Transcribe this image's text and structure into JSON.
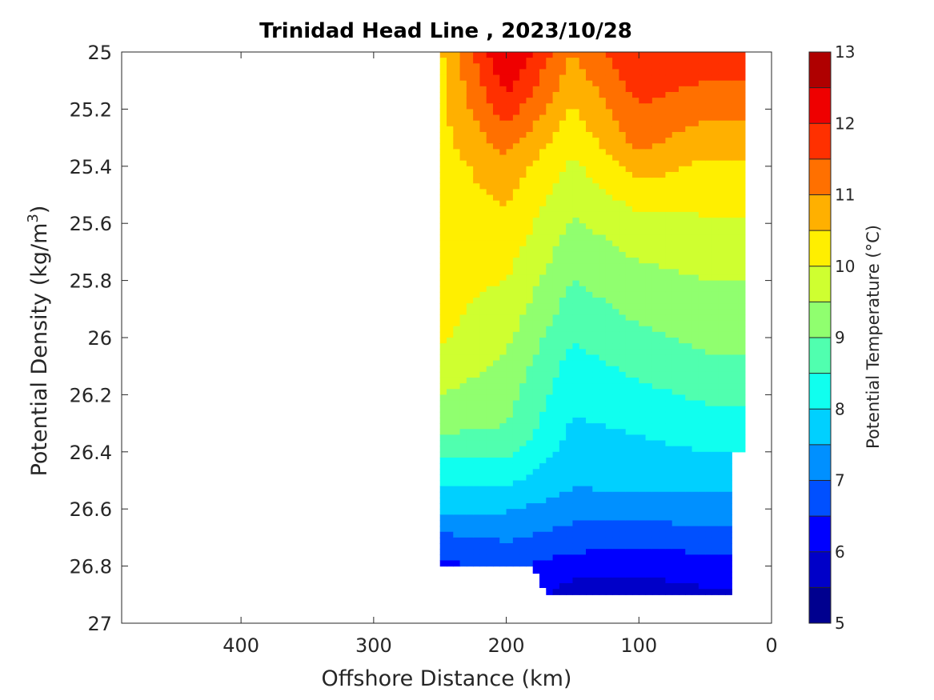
{
  "chart_data": {
    "type": "contour",
    "title": "Trinidad Head Line , 2023/10/28",
    "xlabel": "Offshore Distance (km)",
    "ylabel_main": "Potential Density (kg/m",
    "ylabel_sup": "3",
    "ylabel_close": ")",
    "xlim": [
      490,
      0
    ],
    "x_reversed": true,
    "x_ticks": [
      400,
      300,
      200,
      100,
      0
    ],
    "ylim": [
      25,
      27
    ],
    "y_reversed": true,
    "y_ticks": [
      "25",
      "25.2",
      "25.4",
      "25.6",
      "25.8",
      "26",
      "26.2",
      "26.4",
      "26.6",
      "26.8",
      "27"
    ],
    "colorbar": {
      "label": "Potential Temperature (°C)",
      "range": [
        5,
        13
      ],
      "ticks": [
        5,
        6,
        7,
        8,
        9,
        10,
        11,
        12,
        13
      ],
      "levels": [
        5,
        5.5,
        6,
        6.5,
        7,
        7.5,
        8,
        8.5,
        9,
        9.5,
        10,
        10.5,
        11,
        11.5,
        12,
        12.5,
        13
      ],
      "colormap": "jet",
      "colors": [
        "#00008F",
        "#0000C8",
        "#0000FF",
        "#0050FF",
        "#0090FF",
        "#00D0FF",
        "#10FFEF",
        "#50FFAF",
        "#90FF6F",
        "#CFFF30",
        "#FFEF00",
        "#FFB000",
        "#FF7000",
        "#FF3000",
        "#EF0000",
        "#AF0000"
      ]
    },
    "grid": false,
    "data_extent_km": [
      20,
      250
    ],
    "sections": [
      {
        "x": 250,
        "levels": [
          {
            "sigma": 25.0,
            "t": 10.4
          },
          {
            "sigma": 25.3,
            "t": 10.3
          },
          {
            "sigma": 26.0,
            "t": 10.1
          },
          {
            "sigma": 26.3,
            "t": 9.2
          },
          {
            "sigma": 26.45,
            "t": 8.3
          },
          {
            "sigma": 26.6,
            "t": 7.6
          },
          {
            "sigma": 26.7,
            "t": 6.9
          },
          {
            "sigma": 26.8,
            "t": 6.4
          }
        ]
      },
      {
        "x": 200,
        "levels": [
          {
            "sigma": 25.0,
            "t": 12.6
          },
          {
            "sigma": 25.2,
            "t": 11.8
          },
          {
            "sigma": 25.4,
            "t": 10.8
          },
          {
            "sigma": 25.7,
            "t": 10.2
          },
          {
            "sigma": 26.1,
            "t": 9.4
          },
          {
            "sigma": 26.35,
            "t": 8.9
          },
          {
            "sigma": 26.5,
            "t": 8.1
          },
          {
            "sigma": 26.65,
            "t": 7.3
          },
          {
            "sigma": 26.8,
            "t": 6.6
          }
        ]
      },
      {
        "x": 150,
        "levels": [
          {
            "sigma": 25.0,
            "t": 11.0
          },
          {
            "sigma": 25.4,
            "t": 9.9
          },
          {
            "sigma": 25.8,
            "t": 9.0
          },
          {
            "sigma": 26.1,
            "t": 8.3
          },
          {
            "sigma": 26.5,
            "t": 7.6
          },
          {
            "sigma": 26.7,
            "t": 6.8
          },
          {
            "sigma": 26.9,
            "t": 5.7
          }
        ]
      },
      {
        "x": 100,
        "levels": [
          {
            "sigma": 25.0,
            "t": 12.0
          },
          {
            "sigma": 25.3,
            "t": 11.2
          },
          {
            "sigma": 25.6,
            "t": 9.8
          },
          {
            "sigma": 26.0,
            "t": 8.9
          },
          {
            "sigma": 26.3,
            "t": 8.1
          },
          {
            "sigma": 26.55,
            "t": 7.5
          },
          {
            "sigma": 26.75,
            "t": 6.4
          },
          {
            "sigma": 26.9,
            "t": 5.7
          }
        ]
      },
      {
        "x": 50,
        "levels": [
          {
            "sigma": 25.0,
            "t": 11.9
          },
          {
            "sigma": 25.4,
            "t": 10.4
          },
          {
            "sigma": 25.7,
            "t": 9.7
          },
          {
            "sigma": 26.1,
            "t": 8.9
          },
          {
            "sigma": 26.4,
            "t": 8.0
          },
          {
            "sigma": 26.6,
            "t": 7.3
          },
          {
            "sigma": 26.8,
            "t": 6.3
          },
          {
            "sigma": 26.9,
            "t": 5.9
          }
        ]
      }
    ]
  }
}
